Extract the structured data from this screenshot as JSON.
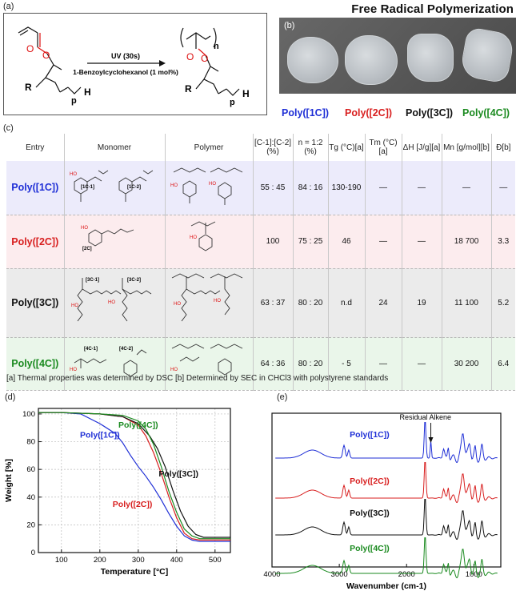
{
  "header": {
    "title": "Free Radical Polymerization"
  },
  "panel_labels": {
    "a": "(a)",
    "b": "(b)",
    "c": "(c)",
    "d": "(d)",
    "e": "(e)"
  },
  "scheme": {
    "condition_top": "UV (30s)",
    "condition_bottom": "1-Benzoylcyclohexanol (1 mol%)",
    "r_label": "R",
    "h_label": "H",
    "p_label": "p",
    "n_label": "n"
  },
  "photo_labels": [
    "Poly([1C])",
    "Poly([2C])",
    "Poly([3C])",
    "Poly([4C])"
  ],
  "table": {
    "headers": [
      "Entry",
      "Monomer",
      "Polymer",
      "[C-1]:[C-2] (%)",
      "n = 1:2 (%)",
      "Tg (°C)[a]",
      "Tm (°C)[a]",
      "ΔH [J/g][a]",
      "Mn [g/mol][b]",
      "Đ[b]"
    ],
    "rows": [
      {
        "entry": "Poly([1C])",
        "ratio": "55 : 45",
        "n_ratio": "84 : 16",
        "tg": "130-190",
        "tm": "—",
        "dh": "—",
        "mn": "—",
        "d": "—",
        "monomer_tags": [
          "[1C-1]",
          "[1C-2]"
        ]
      },
      {
        "entry": "Poly([2C])",
        "ratio": "100",
        "n_ratio": "75 : 25",
        "tg": "46",
        "tm": "—",
        "dh": "—",
        "mn": "18 700",
        "d": "3.3",
        "monomer_tags": [
          "[2C]"
        ]
      },
      {
        "entry": "Poly([3C])",
        "ratio": "63 : 37",
        "n_ratio": "80 : 20",
        "tg": "n.d",
        "tm": "24",
        "dh": "19",
        "mn": "11 100",
        "d": "5.2",
        "monomer_tags": [
          "[3C-1]",
          "[3C-2]"
        ]
      },
      {
        "entry": "Poly([4C])",
        "ratio": "64 : 36",
        "n_ratio": "80 : 20",
        "tg": "- 5",
        "tm": "—",
        "dh": "—",
        "mn": "30 200",
        "d": "6.4",
        "monomer_tags": [
          "[4C-1]",
          "[4C-2]"
        ]
      }
    ],
    "footnote": "[a] Thermal properties was determined by DSC [b]  Determined by SEC in CHCl3 with polystyrene standards"
  },
  "colors": {
    "poly1": "#1f2fd6",
    "poly2": "#d81f1f",
    "poly3": "#111111",
    "poly4": "#1a8a1f"
  },
  "chart_data": [
    {
      "type": "line",
      "title": "",
      "xlabel": "Temperature [°C]",
      "ylabel": "Weight [%]",
      "xlim": [
        40,
        540
      ],
      "ylim": [
        0,
        104
      ],
      "xticks": [
        100,
        200,
        300,
        400,
        500
      ],
      "yticks": [
        0,
        20,
        40,
        60,
        80,
        100
      ],
      "grid": true,
      "series": [
        {
          "name": "Poly([1C])",
          "color": "#1f2fd6",
          "x": [
            40,
            100,
            150,
            200,
            240,
            260,
            280,
            300,
            320,
            340,
            360,
            380,
            400,
            420,
            440,
            460,
            500,
            540
          ],
          "y": [
            101,
            101,
            100,
            93,
            86,
            79,
            70,
            62,
            55,
            47,
            38,
            28,
            19,
            12,
            9,
            8,
            8,
            8
          ]
        },
        {
          "name": "Poly([2C])",
          "color": "#d81f1f",
          "x": [
            40,
            100,
            200,
            260,
            300,
            320,
            340,
            360,
            380,
            400,
            420,
            440,
            460,
            500,
            540
          ],
          "y": [
            101,
            101,
            100,
            98,
            92,
            84,
            72,
            57,
            40,
            25,
            14,
            10,
            9,
            9,
            9
          ]
        },
        {
          "name": "Poly([3C])",
          "color": "#111111",
          "x": [
            40,
            100,
            200,
            260,
            300,
            330,
            350,
            370,
            390,
            410,
            430,
            450,
            470,
            500,
            540
          ],
          "y": [
            101,
            101,
            100,
            98,
            93,
            84,
            75,
            62,
            45,
            30,
            19,
            13,
            11,
            11,
            11
          ]
        },
        {
          "name": "Poly([4C])",
          "color": "#1a8a1f",
          "x": [
            40,
            100,
            200,
            260,
            300,
            320,
            340,
            360,
            380,
            400,
            420,
            440,
            460,
            500,
            540
          ],
          "y": [
            101,
            101,
            100,
            99,
            95,
            89,
            78,
            62,
            44,
            29,
            17,
            12,
            10,
            10,
            10
          ]
        }
      ],
      "labels": [
        "Poly([4C])",
        "Poly([1C])",
        "Poly([3C])",
        "Poly([2C])"
      ]
    },
    {
      "type": "line",
      "title": "",
      "xlabel": "Wavenumber (cm-1)",
      "ylabel": "",
      "xlim": [
        4000,
        600
      ],
      "xticks": [
        4000,
        3000,
        2000,
        1000
      ],
      "annotation": "Residual Alkene",
      "series": [
        {
          "name": "Poly([1C])",
          "color": "#1f2fd6"
        },
        {
          "name": "Poly([2C])",
          "color": "#d81f1f"
        },
        {
          "name": "Poly([3C])",
          "color": "#111111"
        },
        {
          "name": "Poly([4C])",
          "color": "#1a8a1f"
        }
      ]
    }
  ]
}
